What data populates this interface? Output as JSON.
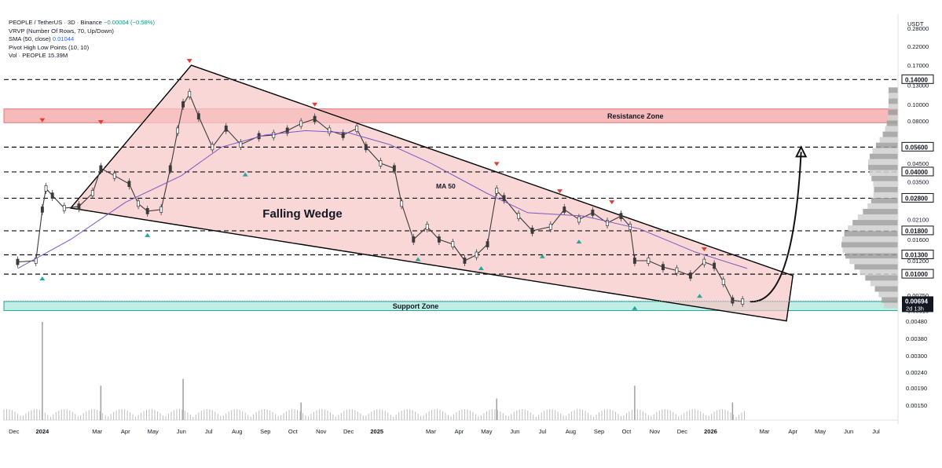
{
  "legend": {
    "symbol": "PEOPLE / TetherUS · 3D · Binance",
    "change": "−0.00004 (−0.58%)",
    "vrvp": "VRVP (Number Of Rows, 70, Up/Down)",
    "sma_label": "SMA (50, close)",
    "sma_value": "0.01044",
    "pivot": "Pivot High Low Points (10, 10)",
    "vol_label": "Vol · PEOPLE",
    "vol_value": "15.39M"
  },
  "colors": {
    "wedge_fill": "#f6c6c6",
    "wedge_line": "#000000",
    "resistance": "#f4a3a3",
    "support": "#bfeee4",
    "sma": "#7e57c2",
    "pivot_high": "#e53935",
    "pivot_low": "#26a69a",
    "candle": "#3a3a3a",
    "last_price_bg": "#131722"
  },
  "chart_data": {
    "type": "candlestick",
    "title": "PEOPLE / TetherUS · 3D · Binance",
    "axis_unit": "USDT",
    "y_scale": "log",
    "ylim": [
      0.0047,
      0.34
    ],
    "y_ticks": [
      "0.28000",
      "0.22000",
      "0.17000",
      "0.14000",
      "0.13000",
      "0.10000",
      "0.08000",
      "0.05600",
      "0.04500",
      "0.04000",
      "0.03500",
      "0.02800",
      "0.02100",
      "0.01800",
      "0.01600",
      "0.01300",
      "0.01200",
      "0.01000",
      "0.00750",
      "0.00694",
      "0.00610"
    ],
    "vol_ticks": [
      "0.00480",
      "0.00380",
      "0.00300",
      "0.00240",
      "0.00190",
      "0.00150"
    ],
    "x_ticks": [
      "Dec",
      "2024",
      "Mar",
      "Apr",
      "May",
      "Jun",
      "Jul",
      "Aug",
      "Sep",
      "Oct",
      "Nov",
      "Dec",
      "2025",
      "Mar",
      "Apr",
      "May",
      "Jun",
      "Jul",
      "Aug",
      "Sep",
      "Oct",
      "Nov",
      "Dec",
      "2026",
      "Mar",
      "Apr",
      "May",
      "Jun",
      "Jul"
    ],
    "price_series": [
      {
        "d": "2023-12-05",
        "p": 0.0118
      },
      {
        "d": "2023-12-25",
        "p": 0.012
      },
      {
        "d": "2024-01-01",
        "p": 0.024
      },
      {
        "d": "2024-01-05",
        "p": 0.032
      },
      {
        "d": "2024-01-12",
        "p": 0.029
      },
      {
        "d": "2024-01-25",
        "p": 0.0245
      },
      {
        "d": "2024-02-10",
        "p": 0.025
      },
      {
        "d": "2024-02-25",
        "p": 0.03
      },
      {
        "d": "2024-03-05",
        "p": 0.042
      },
      {
        "d": "2024-03-20",
        "p": 0.038
      },
      {
        "d": "2024-04-05",
        "p": 0.034
      },
      {
        "d": "2024-04-15",
        "p": 0.026
      },
      {
        "d": "2024-04-25",
        "p": 0.0235
      },
      {
        "d": "2024-05-10",
        "p": 0.024
      },
      {
        "d": "2024-05-20",
        "p": 0.042
      },
      {
        "d": "2024-05-28",
        "p": 0.07
      },
      {
        "d": "2024-06-03",
        "p": 0.1
      },
      {
        "d": "2024-06-10",
        "p": 0.115
      },
      {
        "d": "2024-06-20",
        "p": 0.085
      },
      {
        "d": "2024-07-05",
        "p": 0.056
      },
      {
        "d": "2024-07-20",
        "p": 0.072
      },
      {
        "d": "2024-08-05",
        "p": 0.058
      },
      {
        "d": "2024-08-25",
        "p": 0.065
      },
      {
        "d": "2024-09-10",
        "p": 0.066
      },
      {
        "d": "2024-09-25",
        "p": 0.07
      },
      {
        "d": "2024-10-10",
        "p": 0.077
      },
      {
        "d": "2024-10-25",
        "p": 0.082
      },
      {
        "d": "2024-11-10",
        "p": 0.07
      },
      {
        "d": "2024-11-25",
        "p": 0.066
      },
      {
        "d": "2024-12-10",
        "p": 0.072
      },
      {
        "d": "2024-12-20",
        "p": 0.056
      },
      {
        "d": "2025-01-05",
        "p": 0.045
      },
      {
        "d": "2025-01-20",
        "p": 0.042
      },
      {
        "d": "2025-01-28",
        "p": 0.026
      },
      {
        "d": "2025-02-10",
        "p": 0.016
      },
      {
        "d": "2025-02-25",
        "p": 0.019
      },
      {
        "d": "2025-03-10",
        "p": 0.016
      },
      {
        "d": "2025-03-25",
        "p": 0.015
      },
      {
        "d": "2025-04-07",
        "p": 0.012
      },
      {
        "d": "2025-04-20",
        "p": 0.013
      },
      {
        "d": "2025-05-02",
        "p": 0.015
      },
      {
        "d": "2025-05-12",
        "p": 0.031
      },
      {
        "d": "2025-05-20",
        "p": 0.028
      },
      {
        "d": "2025-06-05",
        "p": 0.022
      },
      {
        "d": "2025-06-20",
        "p": 0.018
      },
      {
        "d": "2025-07-10",
        "p": 0.019
      },
      {
        "d": "2025-07-25",
        "p": 0.024
      },
      {
        "d": "2025-08-10",
        "p": 0.021
      },
      {
        "d": "2025-08-25",
        "p": 0.023
      },
      {
        "d": "2025-09-10",
        "p": 0.02
      },
      {
        "d": "2025-09-25",
        "p": 0.022
      },
      {
        "d": "2025-10-05",
        "p": 0.019
      },
      {
        "d": "2025-10-10",
        "p": 0.012
      },
      {
        "d": "2025-10-25",
        "p": 0.012
      },
      {
        "d": "2025-11-10",
        "p": 0.011
      },
      {
        "d": "2025-11-25",
        "p": 0.0105
      },
      {
        "d": "2025-12-10",
        "p": 0.0098
      },
      {
        "d": "2025-12-25",
        "p": 0.0118
      },
      {
        "d": "2026-01-05",
        "p": 0.0112
      },
      {
        "d": "2026-01-15",
        "p": 0.009
      },
      {
        "d": "2026-01-25",
        "p": 0.007
      },
      {
        "d": "2026-02-05",
        "p": 0.0069
      }
    ],
    "volume_spikes": [
      {
        "d": "2024-01-01",
        "v": 1.0
      },
      {
        "d": "2024-03-05",
        "v": 0.35
      },
      {
        "d": "2024-06-03",
        "v": 0.42
      },
      {
        "d": "2024-10-10",
        "v": 0.18
      },
      {
        "d": "2025-05-12",
        "v": 0.22
      },
      {
        "d": "2025-10-10",
        "v": 0.35
      },
      {
        "d": "2026-01-25",
        "v": 0.18
      }
    ],
    "sma_series": [
      {
        "d": "2023-12-05",
        "p": 0.0108
      },
      {
        "d": "2024-02-01",
        "p": 0.016
      },
      {
        "d": "2024-04-01",
        "p": 0.0265
      },
      {
        "d": "2024-06-01",
        "p": 0.038
      },
      {
        "d": "2024-07-15",
        "p": 0.056
      },
      {
        "d": "2024-09-01",
        "p": 0.066
      },
      {
        "d": "2024-10-15",
        "p": 0.07
      },
      {
        "d": "2024-12-01",
        "p": 0.068
      },
      {
        "d": "2025-01-15",
        "p": 0.058
      },
      {
        "d": "2025-03-01",
        "p": 0.045
      },
      {
        "d": "2025-05-01",
        "p": 0.03
      },
      {
        "d": "2025-06-15",
        "p": 0.023
      },
      {
        "d": "2025-08-15",
        "p": 0.022
      },
      {
        "d": "2025-10-15",
        "p": 0.0185
      },
      {
        "d": "2025-12-15",
        "p": 0.0135
      },
      {
        "d": "2026-02-10",
        "p": 0.0108
      }
    ],
    "pivot_highs": [
      {
        "d": "2024-01-01",
        "p": 0.076
      },
      {
        "d": "2024-03-05",
        "p": 0.074
      },
      {
        "d": "2024-06-10",
        "p": 0.17
      },
      {
        "d": "2024-10-25",
        "p": 0.094
      },
      {
        "d": "2025-05-12",
        "p": 0.042
      },
      {
        "d": "2025-07-20",
        "p": 0.029
      },
      {
        "d": "2025-09-15",
        "p": 0.025
      },
      {
        "d": "2025-12-25",
        "p": 0.0132
      }
    ],
    "pivot_lows": [
      {
        "d": "2024-01-01",
        "p": 0.01
      },
      {
        "d": "2024-04-25",
        "p": 0.018
      },
      {
        "d": "2024-08-10",
        "p": 0.041
      },
      {
        "d": "2025-02-15",
        "p": 0.013
      },
      {
        "d": "2025-04-25",
        "p": 0.0115
      },
      {
        "d": "2025-07-01",
        "p": 0.0135
      },
      {
        "d": "2025-08-10",
        "p": 0.0165
      },
      {
        "d": "2025-10-10",
        "p": 0.0067
      },
      {
        "d": "2025-12-20",
        "p": 0.0079
      }
    ],
    "horizontal_levels": [
      0.14,
      0.056,
      0.04,
      0.028,
      0.018,
      0.013,
      0.01
    ],
    "price_labels": [
      "0.14000",
      "0.05600",
      "0.04000",
      "0.02800",
      "0.01800",
      "0.01300",
      "0.01000"
    ],
    "last_price": "0.00694",
    "countdown": "2d 13h",
    "resistance_zone": {
      "label": "Resistance Zone",
      "range": [
        0.078,
        0.094
      ]
    },
    "support_zone": {
      "label": "Support Zone",
      "range": [
        0.0061,
        0.0069
      ]
    },
    "wedge": {
      "label": "Falling Wedge",
      "top_left": {
        "d": "2024-02-01",
        "p": 0.0245
      },
      "apex_high": {
        "d": "2024-06-12",
        "p": 0.17
      },
      "upper_end": {
        "d": "2026-04-01",
        "p": 0.0098
      },
      "lower_end": {
        "d": "2026-03-25",
        "p": 0.0053
      },
      "lower_start": {
        "d": "2024-02-01",
        "p": 0.0245
      }
    },
    "ma_label": "MA 50",
    "projection": {
      "from": {
        "d": "2026-02-15",
        "p": 0.0069
      },
      "to": {
        "d": "2026-04-10",
        "p": 0.056
      }
    }
  }
}
